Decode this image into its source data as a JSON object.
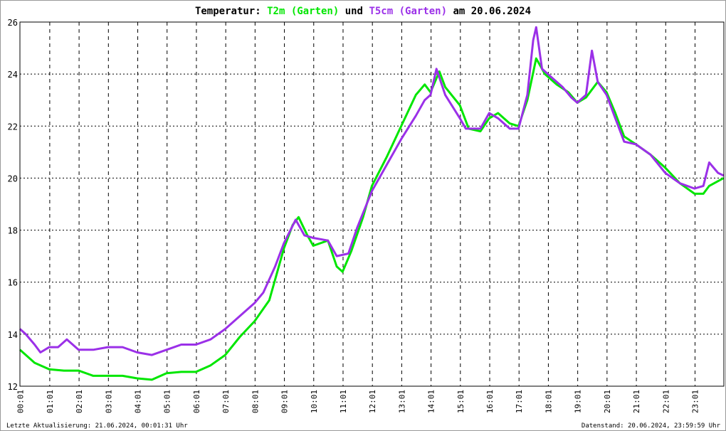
{
  "chart_data": {
    "type": "line",
    "title": {
      "prefix": "Temperatur:",
      "series1": "T2m (Garten)",
      "joiner": "und",
      "series2": "T5cm (Garten)",
      "suffix": "am 20.06.2024"
    },
    "xlabel": "",
    "ylabel": "",
    "x_unit": "hour of day",
    "xlim": [
      0,
      24
    ],
    "ylim": [
      12,
      26
    ],
    "yticks": [
      12,
      14,
      16,
      18,
      20,
      22,
      24,
      26
    ],
    "xtick_labels": [
      "00:01",
      "01:01",
      "02:01",
      "03:01",
      "04:01",
      "05:01",
      "06:01",
      "07:01",
      "08:01",
      "09:01",
      "10:01",
      "11:01",
      "12:01",
      "13:01",
      "14:01",
      "15:01",
      "16:01",
      "17:01",
      "18:01",
      "19:01",
      "20:01",
      "21:01",
      "22:01",
      "23:01"
    ],
    "grid": true,
    "series": [
      {
        "name": "T2m (Garten)",
        "color": "#00e600",
        "x": [
          0,
          0.5,
          1,
          1.5,
          2,
          2.5,
          3,
          3.5,
          4,
          4.5,
          5,
          5.5,
          6,
          6.5,
          7,
          7.5,
          8,
          8.5,
          9,
          9.3,
          9.5,
          9.8,
          10,
          10.5,
          10.8,
          11,
          11.3,
          11.7,
          12,
          12.5,
          13,
          13.5,
          13.8,
          14,
          14.3,
          14.5,
          15,
          15.3,
          15.7,
          16,
          16.3,
          16.7,
          17,
          17.3,
          17.6,
          17.9,
          18.3,
          18.7,
          19,
          19.3,
          19.7,
          20,
          20.3,
          20.6,
          21,
          21.5,
          22,
          22.5,
          23,
          23.3,
          23.5,
          23.99
        ],
        "values": [
          13.4,
          12.9,
          12.65,
          12.6,
          12.6,
          12.4,
          12.4,
          12.4,
          12.3,
          12.25,
          12.5,
          12.55,
          12.55,
          12.8,
          13.2,
          13.9,
          14.5,
          15.3,
          17.3,
          18.2,
          18.5,
          17.8,
          17.4,
          17.6,
          16.6,
          16.4,
          17.2,
          18.5,
          19.7,
          20.8,
          22.0,
          23.2,
          23.6,
          23.3,
          24.1,
          23.5,
          22.8,
          21.9,
          21.8,
          22.3,
          22.5,
          22.1,
          22.0,
          23.0,
          24.6,
          24.0,
          23.6,
          23.3,
          22.9,
          23.1,
          23.7,
          23.3,
          22.5,
          21.6,
          21.3,
          20.9,
          20.4,
          19.8,
          19.4,
          19.4,
          19.7,
          20.0
        ]
      },
      {
        "name": "T5cm (Garten)",
        "color": "#9b30e8",
        "x": [
          0,
          0.2,
          0.5,
          0.7,
          1,
          1.3,
          1.6,
          2,
          2.5,
          3,
          3.5,
          4,
          4.5,
          5,
          5.5,
          6,
          6.5,
          7,
          7.5,
          8,
          8.3,
          8.7,
          9,
          9.4,
          9.7,
          10,
          10.5,
          10.8,
          11.2,
          11.5,
          12,
          12.5,
          13,
          13.5,
          13.8,
          14,
          14.2,
          14.5,
          15,
          15.2,
          15.7,
          16,
          16.3,
          16.7,
          17,
          17.3,
          17.5,
          17.6,
          17.8,
          18.2,
          18.5,
          18.8,
          19,
          19.3,
          19.5,
          19.7,
          20,
          20.3,
          20.6,
          21,
          21.5,
          22,
          22.5,
          23,
          23.3,
          23.5,
          23.8,
          23.99
        ],
        "values": [
          14.2,
          14.0,
          13.6,
          13.3,
          13.5,
          13.5,
          13.8,
          13.4,
          13.4,
          13.5,
          13.5,
          13.3,
          13.2,
          13.4,
          13.6,
          13.6,
          13.8,
          14.2,
          14.7,
          15.2,
          15.6,
          16.6,
          17.5,
          18.4,
          17.8,
          17.7,
          17.6,
          17.0,
          17.1,
          18.1,
          19.5,
          20.5,
          21.5,
          22.4,
          23.0,
          23.2,
          24.2,
          23.2,
          22.3,
          21.9,
          21.9,
          22.5,
          22.3,
          21.9,
          21.9,
          23.2,
          25.3,
          25.8,
          24.2,
          23.8,
          23.5,
          23.1,
          22.9,
          23.2,
          24.9,
          23.7,
          23.2,
          22.3,
          21.4,
          21.3,
          20.9,
          20.2,
          19.8,
          19.6,
          19.7,
          20.6,
          20.2,
          20.1
        ]
      }
    ]
  },
  "footer": {
    "last_update": "Letzte Aktualisierung: 21.06.2024, 00:01:31 Uhr",
    "data_status": "Datenstand: 20.06.2024, 23:59:59 Uhr"
  }
}
